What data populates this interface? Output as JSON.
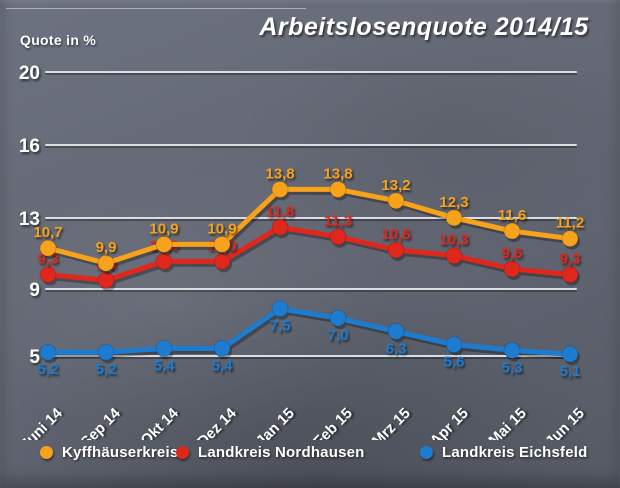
{
  "colors": {
    "background": "#636973",
    "gridline": "#DADDE3",
    "text": "#FFFFFF"
  },
  "chart_data": {
    "type": "line",
    "title": "Arbeitslosenquote 2014/15",
    "ylabel": "Quote in %",
    "xlabel": "",
    "categories": [
      "Juni 14",
      "Sep 14",
      "Okt 14",
      "Dez 14",
      "Jan 15",
      "Feb 15",
      "Mrz 15",
      "Apr 15",
      "Mai 15",
      "Jun 15"
    ],
    "series": [
      {
        "name": "Kyffhäuserkreis",
        "color": "#F7A21B",
        "values": [
          10.7,
          9.9,
          10.9,
          10.9,
          13.8,
          13.8,
          13.2,
          12.3,
          11.6,
          11.2
        ]
      },
      {
        "name": "Landkreis Nordhausen",
        "color": "#E0271C",
        "values": [
          9.3,
          9.0,
          10.0,
          10.0,
          11.8,
          11.3,
          10.6,
          10.3,
          9.6,
          9.3
        ]
      },
      {
        "name": "Landkreis Eichsfeld",
        "color": "#1E7CD0",
        "values": [
          5.2,
          5.2,
          5.4,
          5.4,
          7.5,
          7.0,
          6.3,
          5.6,
          5.3,
          5.1
        ]
      }
    ],
    "y_ticks": [
      20,
      16,
      13,
      9,
      5
    ],
    "ylim": [
      4,
      21
    ],
    "grid": true,
    "legend_position": "bottom",
    "decimal_separator": ","
  }
}
